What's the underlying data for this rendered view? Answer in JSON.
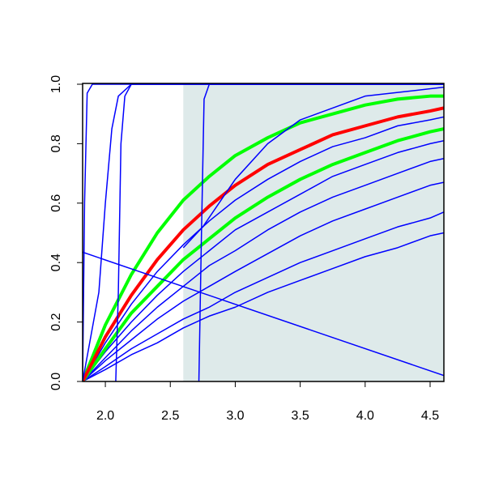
{
  "chart_data": {
    "type": "line",
    "xlim": [
      1.825,
      4.606
    ],
    "ylim": [
      0,
      1
    ],
    "xticks": [
      {
        "value": 2,
        "label": "2.0"
      },
      {
        "value": 2.5,
        "label": "2.5"
      },
      {
        "value": 3,
        "label": "3.0"
      },
      {
        "value": 3.5,
        "label": "3.5"
      },
      {
        "value": 4,
        "label": "4.0"
      },
      {
        "value": 4.5,
        "label": "4.5"
      }
    ],
    "yticks": [
      {
        "value": 0,
        "label": "0.0"
      },
      {
        "value": 0.2,
        "label": "0.2"
      },
      {
        "value": 0.4,
        "label": "0.4"
      },
      {
        "value": 0.6,
        "label": "0.6"
      },
      {
        "value": 0.8,
        "label": "0.8"
      },
      {
        "value": 1,
        "label": "1.0"
      }
    ],
    "shaded_region": {
      "xmin": 2.6,
      "xmax": 4.606,
      "color": "#deeaea"
    },
    "x": [
      1.825,
      2.0,
      2.2,
      2.4,
      2.6,
      2.8,
      3.0,
      3.25,
      3.5,
      3.75,
      4.0,
      4.25,
      4.5,
      4.606
    ],
    "series": [
      {
        "color": "#0000ff",
        "line_width": 1.5,
        "values": [
          0,
          0.04,
          0.09,
          0.13,
          0.18,
          0.22,
          0.25,
          0.3,
          0.34,
          0.38,
          0.42,
          0.45,
          0.49,
          0.5
        ]
      },
      {
        "color": "#0000ff",
        "line_width": 1.5,
        "values": [
          0,
          0.05,
          0.11,
          0.16,
          0.21,
          0.25,
          0.3,
          0.35,
          0.4,
          0.44,
          0.48,
          0.52,
          0.55,
          0.57
        ]
      },
      {
        "color": "#0000ff",
        "line_width": 1.5,
        "values": [
          0,
          0.07,
          0.14,
          0.21,
          0.27,
          0.32,
          0.37,
          0.43,
          0.49,
          0.54,
          0.58,
          0.62,
          0.66,
          0.67
        ]
      },
      {
        "color": "#0000ff",
        "line_width": 1.5,
        "values": [
          0,
          0.08,
          0.17,
          0.25,
          0.32,
          0.39,
          0.44,
          0.51,
          0.57,
          0.62,
          0.66,
          0.7,
          0.74,
          0.75
        ]
      },
      {
        "color": "#0000ff",
        "line_width": 1.5,
        "values": [
          0,
          0.1,
          0.2,
          0.29,
          0.37,
          0.44,
          0.51,
          0.57,
          0.63,
          0.69,
          0.73,
          0.77,
          0.8,
          0.81
        ]
      },
      {
        "color": "#0000ff",
        "line_width": 1.5,
        "values": [
          0,
          0.13,
          0.26,
          0.37,
          0.46,
          0.54,
          0.61,
          0.68,
          0.74,
          0.79,
          0.82,
          0.86,
          0.88,
          0.89
        ]
      },
      {
        "color": "#00ff00",
        "line_width": 4,
        "values": [
          0,
          0.11,
          0.23,
          0.32,
          0.41,
          0.48,
          0.55,
          0.62,
          0.68,
          0.73,
          0.77,
          0.81,
          0.84,
          0.85
        ]
      },
      {
        "color": "#00ff00",
        "line_width": 4,
        "values": [
          0,
          0.19,
          0.36,
          0.5,
          0.61,
          0.69,
          0.76,
          0.82,
          0.87,
          0.9,
          0.93,
          0.95,
          0.96,
          0.96
        ]
      },
      {
        "color": "#ff0000",
        "line_width": 4,
        "values": [
          0,
          0.15,
          0.29,
          0.41,
          0.51,
          0.59,
          0.66,
          0.73,
          0.78,
          0.83,
          0.86,
          0.89,
          0.91,
          0.92
        ]
      },
      {
        "color": "#0000ff",
        "line_width": 1.5,
        "x": [
          1.825,
          1.84,
          1.86,
          1.9,
          4.606
        ],
        "values": [
          0,
          0.6,
          0.97,
          1,
          1
        ]
      },
      {
        "color": "#0000ff",
        "line_width": 1.5,
        "x": [
          1.825,
          1.95,
          2.0,
          2.05,
          2.1,
          2.2,
          4.606
        ],
        "values": [
          0,
          0.3,
          0.6,
          0.85,
          0.96,
          1,
          1
        ]
      },
      {
        "color": "#0000ff",
        "line_width": 1.5,
        "x": [
          2.08,
          2.1,
          2.12,
          2.15,
          2.2,
          4.606
        ],
        "values": [
          0,
          0.3,
          0.8,
          0.96,
          1,
          1
        ]
      },
      {
        "color": "#0000ff",
        "line_width": 1.5,
        "x": [
          2.72,
          2.74,
          2.76,
          2.8,
          4.606
        ],
        "values": [
          0,
          0.5,
          0.95,
          1,
          1
        ]
      },
      {
        "color": "#0000ff",
        "line_width": 1.5,
        "x": [
          2.6,
          2.75,
          3.0,
          3.25,
          3.5,
          4.0,
          4.606
        ],
        "values": [
          0.45,
          0.52,
          0.68,
          0.8,
          0.88,
          0.96,
          0.99
        ]
      },
      {
        "color": "#0000ff",
        "line_width": 1.5,
        "x": [
          1.825,
          4.606
        ],
        "values": [
          0.435,
          0.02
        ]
      }
    ]
  }
}
